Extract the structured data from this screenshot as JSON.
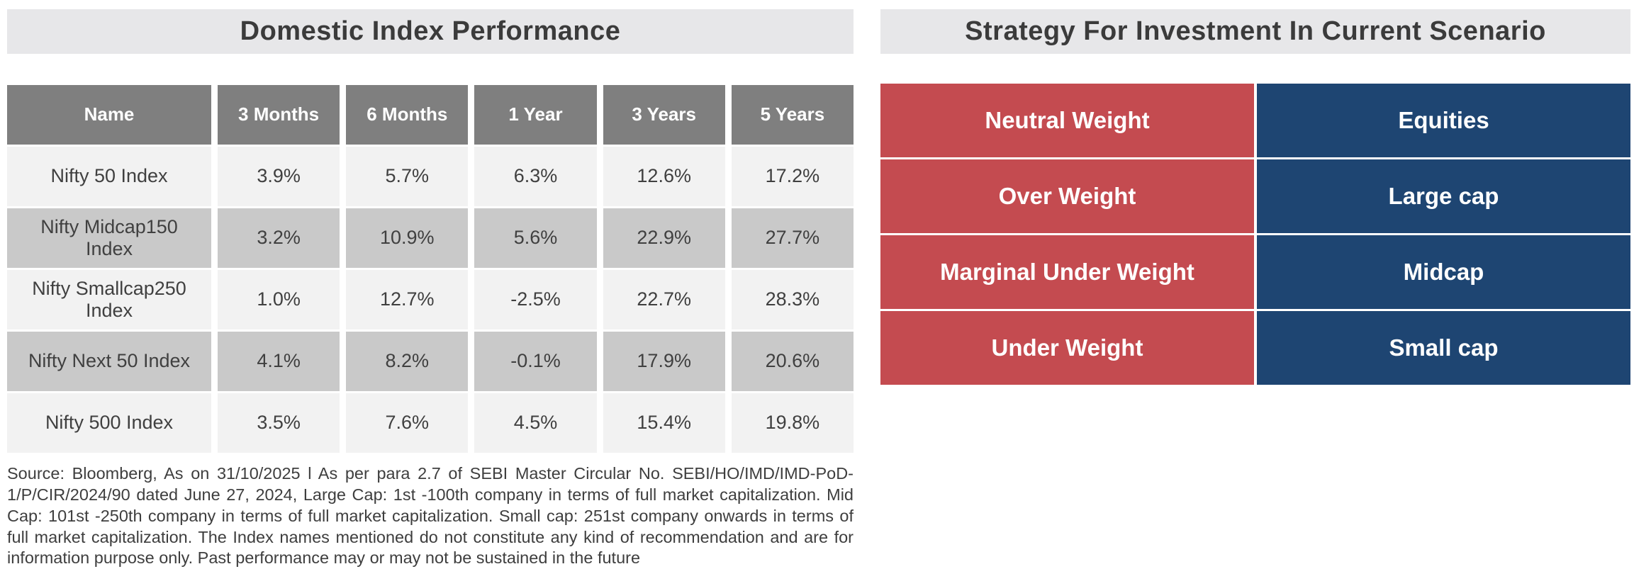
{
  "left_section": {
    "title": "Domestic Index Performance",
    "table": {
      "headers": [
        "Name",
        "3 Months",
        "6 Months",
        "1 Year",
        "3 Years",
        "5 Years"
      ],
      "rows": [
        {
          "name": "Nifty 50 Index",
          "values": [
            "3.9%",
            "5.7%",
            "6.3%",
            "12.6%",
            "17.2%"
          ]
        },
        {
          "name": "Nifty Midcap150 Index",
          "values": [
            "3.2%",
            "10.9%",
            "5.6%",
            "22.9%",
            "27.7%"
          ]
        },
        {
          "name": "Nifty Smallcap250 Index",
          "values": [
            "1.0%",
            "12.7%",
            "-2.5%",
            "22.7%",
            "28.3%"
          ]
        },
        {
          "name": "Nifty Next 50 Index",
          "values": [
            "4.1%",
            "8.2%",
            "-0.1%",
            "17.9%",
            "20.6%"
          ]
        },
        {
          "name": "Nifty 500 Index",
          "values": [
            "3.5%",
            "7.6%",
            "4.5%",
            "15.4%",
            "19.8%"
          ]
        }
      ]
    },
    "footnote": "Source: Bloomberg, As on 31/10/2025 l As per para 2.7 of SEBI Master Circular No. SEBI/HO/IMD/IMD-PoD-1/P/CIR/2024/90 dated June 27, 2024, Large Cap: 1st -100th company in terms of full market capitalization. Mid Cap: 101st -250th company in terms of full market capitalization. Small cap: 251st company onwards in terms of full market capitalization. The Index names mentioned do not constitute any kind of recommendation and are for information purpose only. Past performance may or may not be sustained in the future"
  },
  "right_section": {
    "title": "Strategy For Investment In Current Scenario",
    "rows": [
      {
        "weight": "Neutral Weight",
        "asset": "Equities"
      },
      {
        "weight": "Over Weight",
        "asset": "Large cap"
      },
      {
        "weight": "Marginal Under Weight",
        "asset": "Midcap"
      },
      {
        "weight": "Under Weight",
        "asset": "Small cap"
      }
    ]
  },
  "colors": {
    "title_bar_bg": "#e7e7e9",
    "table_header_bg": "#7f7f7f",
    "row_light": "#f2f2f2",
    "row_dark": "#c9c9c9",
    "weight_red": "#c44b50",
    "asset_blue": "#1e4572",
    "text_dark": "#3e3e3e"
  }
}
